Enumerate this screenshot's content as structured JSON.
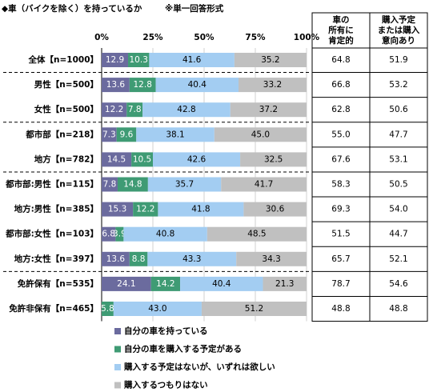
{
  "chart_data": {
    "type": "stacked-barh",
    "title": "◆車（バイクを除く）を持っているか",
    "subtitle": "※単一回答形式",
    "categories": [
      "全体【n=1000】",
      "男性【n=500】",
      "女性【n=500】",
      "都市部【n=218】",
      "地方【n=782】",
      "都市部:男性【n=115】",
      "地方:男性【n=385】",
      "都市部:女性【n=103】",
      "地方:女性【n=397】",
      "免許保有【n=535】",
      "免許非保有【n=465】"
    ],
    "series": [
      {
        "name": "自分の車を持っている",
        "color": "#6b6b9e",
        "values": [
          12.9,
          13.6,
          12.2,
          7.3,
          14.5,
          7.8,
          15.3,
          6.8,
          13.6,
          24.1,
          null
        ]
      },
      {
        "name": "自分の車を購入する予定がある",
        "color": "#3f9b74",
        "values": [
          10.3,
          12.8,
          7.8,
          9.6,
          10.5,
          14.8,
          12.2,
          3.9,
          8.8,
          14.2,
          5.8
        ]
      },
      {
        "name": "購入する予定はないが、いずれは欲しい",
        "color": "#a3cdf2",
        "values": [
          41.6,
          40.4,
          42.8,
          38.1,
          42.6,
          35.7,
          41.8,
          40.8,
          43.3,
          40.4,
          43.0
        ],
        "value_labels": [
          "41.6",
          "40.4",
          "42.8",
          "38.1",
          "42.6",
          "35.7",
          "41.8",
          "40.8",
          "43.3",
          "40.4",
          "43.0"
        ]
      },
      {
        "name": "購入するつもりはない",
        "color": "#c0c0c0",
        "values": [
          35.2,
          33.2,
          37.2,
          45.0,
          32.5,
          41.7,
          30.6,
          48.5,
          34.3,
          21.3,
          51.2
        ],
        "value_labels": [
          "35.2",
          "33.2",
          "37.2",
          "45.0",
          "32.5",
          "41.7",
          "30.6",
          "48.5",
          "34.3",
          "21.3",
          "51.2"
        ]
      }
    ],
    "xlim": [
      0,
      100
    ],
    "xticks": [
      {
        "value": 0,
        "label": "0%"
      },
      {
        "value": 25,
        "label": "25%"
      },
      {
        "value": 50,
        "label": "50%"
      },
      {
        "value": 75,
        "label": "75%"
      },
      {
        "value": 100,
        "label": "100%"
      }
    ],
    "grid": true,
    "table": {
      "columns": [
        {
          "header": [
            "車の",
            "所有に",
            "肯定的"
          ],
          "values": [
            "64.8",
            "66.8",
            "62.8",
            "55.0",
            "67.6",
            "58.3",
            "69.3",
            "51.5",
            "65.7",
            "78.7",
            "48.8"
          ]
        },
        {
          "header": [
            "購入予定",
            "または購入",
            "意向あり"
          ],
          "values": [
            "51.9",
            "53.2",
            "50.6",
            "47.7",
            "53.1",
            "50.5",
            "54.0",
            "44.7",
            "52.1",
            "54.6",
            "48.8"
          ]
        }
      ]
    }
  }
}
